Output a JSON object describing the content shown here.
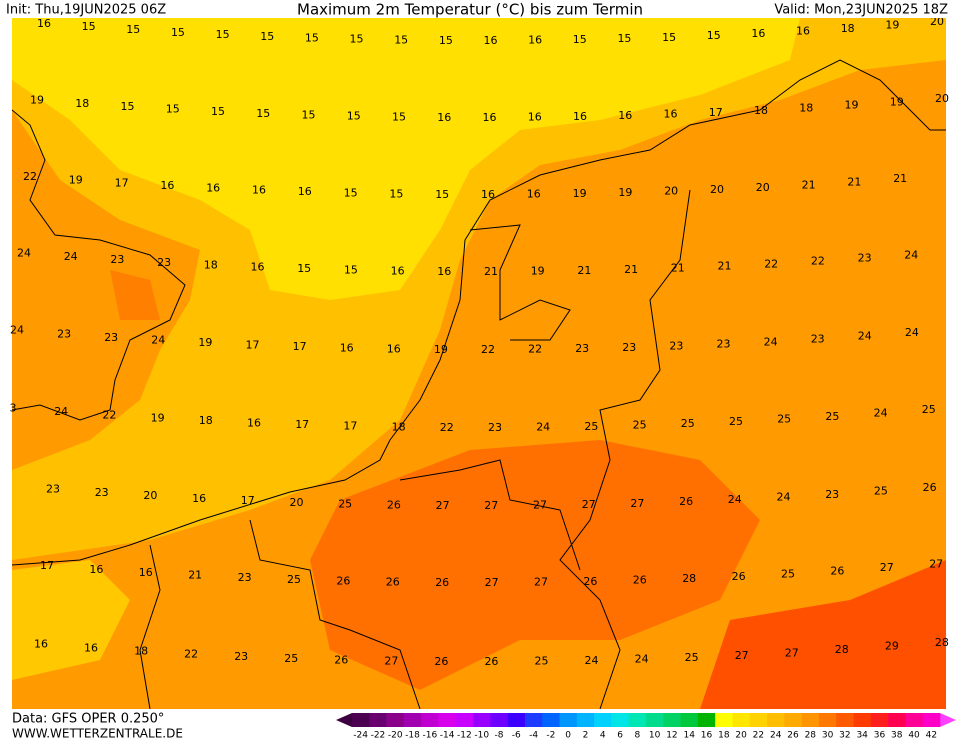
{
  "header": {
    "init": "Init: Thu,19JUN2025 06Z",
    "title": "Maximum 2m Temperatur (°C) bis zum Termin",
    "valid": "Valid: Mon,23JUN2025 18Z"
  },
  "footer": {
    "data": "Data: GFS OPER 0.250°",
    "site": "WWW.WETTERZENTRALE.DE"
  },
  "map": {
    "rows": [
      [
        16,
        15,
        15,
        15,
        15,
        15,
        15,
        15,
        15,
        15,
        16,
        16,
        15,
        15,
        15,
        15,
        16,
        16,
        18,
        19,
        20
      ],
      [
        19,
        18,
        15,
        15,
        15,
        15,
        15,
        15,
        15,
        16,
        16,
        16,
        16,
        16,
        16,
        17,
        18,
        18,
        19,
        19,
        20
      ],
      [
        22,
        19,
        17,
        16,
        16,
        16,
        16,
        15,
        15,
        15,
        16,
        16,
        19,
        19,
        20,
        20,
        20,
        21,
        21,
        21
      ],
      [
        24,
        24,
        23,
        23,
        18,
        16,
        15,
        15,
        16,
        16,
        21,
        19,
        21,
        21,
        21,
        21,
        22,
        22,
        23,
        24
      ],
      [
        24,
        23,
        23,
        24,
        19,
        17,
        17,
        16,
        16,
        19,
        22,
        22,
        23,
        23,
        23,
        23,
        24,
        23,
        24,
        24
      ],
      [
        3,
        24,
        22,
        19,
        18,
        16,
        17,
        17,
        18,
        22,
        23,
        24,
        25,
        25,
        25,
        25,
        25,
        25,
        24,
        25
      ],
      [
        23,
        23,
        20,
        16,
        17,
        20,
        25,
        26,
        27,
        27,
        27,
        27,
        27,
        26,
        24,
        24,
        23,
        25,
        26
      ],
      [
        17,
        16,
        16,
        21,
        23,
        25,
        26,
        26,
        26,
        27,
        27,
        26,
        26,
        28,
        26,
        25,
        26,
        27,
        27
      ],
      [
        16,
        16,
        18,
        22,
        23,
        25,
        26,
        27,
        26,
        26,
        25,
        24,
        24,
        25,
        27,
        27,
        28,
        29,
        28
      ]
    ]
  },
  "colorbar": {
    "labels": [
      -24,
      -22,
      -20,
      -18,
      -16,
      -14,
      -12,
      -10,
      -8,
      -6,
      -4,
      -2,
      0,
      2,
      4,
      6,
      8,
      10,
      12,
      14,
      16,
      18,
      20,
      22,
      24,
      26,
      28,
      30,
      32,
      34,
      36,
      38,
      40,
      42
    ],
    "colors": [
      "#4b0050",
      "#6a0070",
      "#8b008b",
      "#a000b0",
      "#c000d0",
      "#d800ec",
      "#c800ff",
      "#9a00ff",
      "#6e00ff",
      "#3c00ff",
      "#1e3cff",
      "#0064ff",
      "#0096ff",
      "#00b4ff",
      "#00d2ff",
      "#00e6e6",
      "#00e6b4",
      "#00dc8c",
      "#00d264",
      "#00c83c",
      "#00b400",
      "#ffff00",
      "#ffe600",
      "#ffd200",
      "#ffbe00",
      "#ffaa00",
      "#ff9600",
      "#ff7800",
      "#ff5a00",
      "#ff3c00",
      "#ff1e1e",
      "#ff0050",
      "#ff0096",
      "#ff00c8"
    ]
  }
}
